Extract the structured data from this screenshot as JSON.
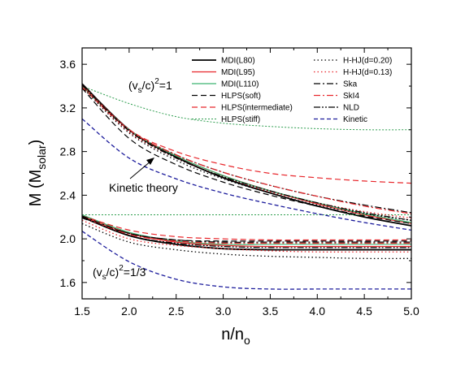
{
  "chart_data": {
    "type": "line",
    "xlabel": "n/n",
    "xlabel_sub": "o",
    "ylabel": "M (M",
    "ylabel_sub": "solar",
    "ylabel_close": ")",
    "xlim": [
      1.5,
      5.0
    ],
    "ylim": [
      1.45,
      3.75
    ],
    "xticks": [
      1.5,
      2.0,
      2.5,
      3.0,
      3.5,
      4.0,
      4.5,
      5.0
    ],
    "xtick_labels": [
      "1.5",
      "2.0",
      "2.5",
      "3.0",
      "3.5",
      "4.0",
      "4.5",
      "5.0"
    ],
    "yticks": [
      1.6,
      2.0,
      2.4,
      2.8,
      3.2,
      3.6
    ],
    "ytick_labels": [
      "1.6",
      "2.0",
      "2.4",
      "2.8",
      "3.2",
      "3.6"
    ],
    "grid": false,
    "legend_placement": "top",
    "x": [
      1.5,
      2.0,
      2.5,
      3.0,
      3.5,
      4.0,
      4.5,
      5.0
    ],
    "series": [
      {
        "name": "MDI(L80)",
        "color": "#000000",
        "dash": "",
        "width": 1.8,
        "upper": [
          3.42,
          3.0,
          2.75,
          2.56,
          2.42,
          2.3,
          2.2,
          2.12
        ],
        "lower": [
          2.2,
          2.03,
          1.95,
          1.91,
          1.9,
          1.9,
          1.9,
          1.9
        ]
      },
      {
        "name": "MDI(L95)",
        "color": "#e8262b",
        "dash": "",
        "width": 1.2,
        "upper": [
          3.41,
          3.0,
          2.76,
          2.58,
          2.44,
          2.32,
          2.22,
          2.14
        ],
        "lower": [
          2.21,
          2.05,
          1.97,
          1.94,
          1.93,
          1.93,
          1.93,
          1.93
        ]
      },
      {
        "name": "MDI(L110)",
        "color": "#3cb371",
        "dash": "",
        "width": 1.2,
        "upper": [
          3.4,
          3.0,
          2.76,
          2.58,
          2.44,
          2.33,
          2.23,
          2.15
        ],
        "lower": [
          2.22,
          2.06,
          1.98,
          1.95,
          1.95,
          1.95,
          1.95,
          1.95
        ]
      },
      {
        "name": "HLPS(soft)",
        "color": "#000000",
        "dash": "7 4",
        "width": 1.2,
        "upper": [
          3.38,
          2.92,
          2.68,
          2.52,
          2.4,
          2.3,
          2.21,
          2.14
        ],
        "lower": [
          2.19,
          2.05,
          1.99,
          1.98,
          1.98,
          1.98,
          1.98,
          1.98
        ]
      },
      {
        "name": "HLPS(intermediate)",
        "color": "#e8262b",
        "dash": "7 4",
        "width": 1.2,
        "upper": [
          3.39,
          3.0,
          2.8,
          2.68,
          2.6,
          2.56,
          2.53,
          2.51
        ],
        "lower": [
          2.21,
          2.08,
          2.02,
          2.0,
          1.99,
          1.99,
          1.99,
          1.99
        ]
      },
      {
        "name": "HLPS(stiff)",
        "color": "#2e9e4f",
        "dash": "2 2",
        "width": 1.0,
        "upper": [
          3.4,
          3.24,
          3.12,
          3.06,
          3.03,
          3.01,
          3.0,
          3.0
        ],
        "lower": [
          2.22,
          2.22,
          2.22,
          2.22,
          2.22,
          2.22,
          2.22,
          2.22
        ]
      },
      {
        "name": "H-HJ(d=0.20)",
        "color": "#000000",
        "dash": "1.5 3",
        "width": 1.3,
        "upper": [
          3.39,
          2.97,
          2.72,
          2.55,
          2.42,
          2.31,
          2.23,
          2.17
        ],
        "lower": [
          2.14,
          1.97,
          1.9,
          1.86,
          1.84,
          1.83,
          1.82,
          1.82
        ]
      },
      {
        "name": "H-HJ(d=0.13)",
        "color": "#e8262b",
        "dash": "1.5 3",
        "width": 1.3,
        "upper": [
          3.4,
          2.98,
          2.74,
          2.57,
          2.43,
          2.33,
          2.25,
          2.19
        ],
        "lower": [
          2.17,
          2.0,
          1.94,
          1.91,
          1.89,
          1.88,
          1.88,
          1.88
        ]
      },
      {
        "name": "Ska",
        "color": "#000000",
        "dash": "8 3 2 3",
        "width": 1.2,
        "upper": [
          3.42,
          3.0,
          2.77,
          2.61,
          2.49,
          2.39,
          2.31,
          2.24
        ],
        "lower": [
          2.21,
          2.05,
          1.99,
          1.97,
          1.97,
          1.97,
          1.97,
          1.97
        ]
      },
      {
        "name": "SkI4",
        "color": "#e8262b",
        "dash": "8 3 2 3",
        "width": 1.2,
        "upper": [
          3.41,
          3.0,
          2.77,
          2.61,
          2.49,
          2.39,
          2.3,
          2.23
        ],
        "lower": [
          2.2,
          2.04,
          1.98,
          1.96,
          1.96,
          1.96,
          1.96,
          1.96
        ]
      },
      {
        "name": "NLD",
        "color": "#000000",
        "dash": "8 2 2 2 2 2",
        "width": 1.2,
        "upper": [
          3.41,
          2.99,
          2.74,
          2.57,
          2.44,
          2.33,
          2.24,
          2.17
        ],
        "lower": [
          2.2,
          2.03,
          1.96,
          1.93,
          1.92,
          1.92,
          1.92,
          1.92
        ]
      },
      {
        "name": "Kinetic",
        "color": "#1c1c9c",
        "dash": "5 3",
        "width": 1.3,
        "upper": [
          3.1,
          2.74,
          2.55,
          2.42,
          2.32,
          2.23,
          2.15,
          2.08
        ],
        "lower": [
          2.07,
          1.79,
          1.63,
          1.56,
          1.54,
          1.54,
          1.54,
          1.54
        ]
      }
    ],
    "annotations": {
      "upper_label": "(v",
      "upper_label_sub": "s",
      "upper_label_rest": "/c)",
      "upper_label_sup": "2",
      "upper_label_end": "=1",
      "lower_label": "(v",
      "lower_label_sub": "s",
      "lower_label_rest": "/c)",
      "lower_label_sup": "2",
      "lower_label_end": "=1/3",
      "arrow_label": "Kinetic theory"
    }
  }
}
